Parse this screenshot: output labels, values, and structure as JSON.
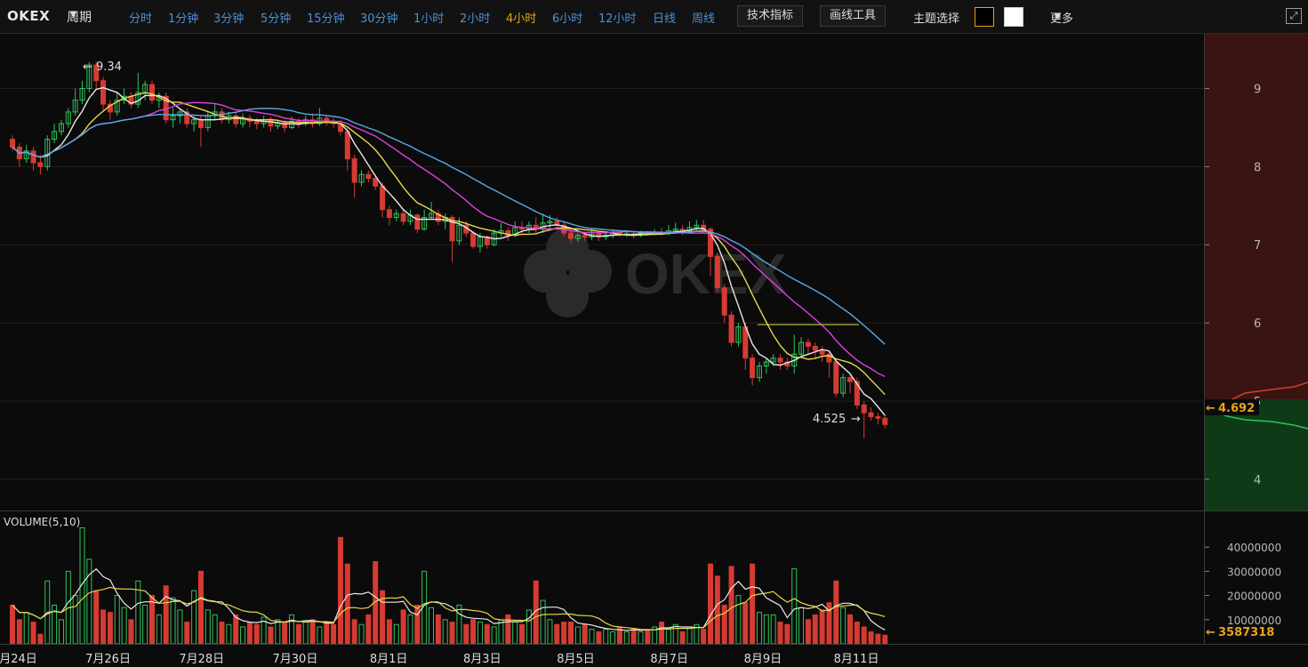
{
  "toolbar": {
    "logo": "OKEX",
    "period_label": "周期",
    "intervals": [
      "分时",
      "1分钟",
      "3分钟",
      "5分钟",
      "15分钟",
      "30分钟",
      "1小时",
      "2小时",
      "4小时",
      "6小时",
      "12小时",
      "日线",
      "周线"
    ],
    "active_interval": "4小时",
    "indicators_button": "技术指标",
    "drawing_tools_button": "画线工具",
    "theme_label": "主题选择",
    "more_label": "更多",
    "colors": {
      "accent": "#e8a317",
      "link": "#4a90d9"
    }
  },
  "watermark": "OKEX",
  "price_axis": {
    "ticks": [
      "9",
      "8",
      "7",
      "6",
      "5",
      "4"
    ],
    "current_price": "4.692"
  },
  "annotations": {
    "high": "9.34",
    "low": "4.525"
  },
  "volume_panel": {
    "title": "VOLUME(5,10)",
    "ticks": [
      "40000000",
      "30000000",
      "20000000",
      "10000000"
    ],
    "current_volume": "3587318"
  },
  "date_labels": [
    "7月24日",
    "7月26日",
    "7月28日",
    "7月30日",
    "8月1日",
    "8月3日",
    "8月5日",
    "8月7日",
    "8月9日",
    "8月11日"
  ],
  "chart_data": {
    "type": "candlestick",
    "candles": [
      [
        8.35,
        8.25,
        8.4,
        8.2
      ],
      [
        8.25,
        8.1,
        8.3,
        8.0
      ],
      [
        8.1,
        8.2,
        8.28,
        8.05
      ],
      [
        8.2,
        8.05,
        8.25,
        7.95
      ],
      [
        8.05,
        8.0,
        8.15,
        7.9
      ],
      [
        8.0,
        8.35,
        8.4,
        7.95
      ],
      [
        8.35,
        8.45,
        8.55,
        8.3
      ],
      [
        8.45,
        8.55,
        8.6,
        8.4
      ],
      [
        8.55,
        8.7,
        8.75,
        8.5
      ],
      [
        8.7,
        8.85,
        9.0,
        8.65
      ],
      [
        8.85,
        9.0,
        9.1,
        8.8
      ],
      [
        9.0,
        9.3,
        9.34,
        8.95
      ],
      [
        9.3,
        9.1,
        9.34,
        9.0
      ],
      [
        9.1,
        8.8,
        9.15,
        8.7
      ],
      [
        8.8,
        8.7,
        8.85,
        8.6
      ],
      [
        8.7,
        8.85,
        8.95,
        8.65
      ],
      [
        8.85,
        8.9,
        9.0,
        8.8
      ],
      [
        8.9,
        8.8,
        8.95,
        8.75
      ],
      [
        8.8,
        8.95,
        9.2,
        8.75
      ],
      [
        8.95,
        9.05,
        9.1,
        8.85
      ],
      [
        9.05,
        8.85,
        9.1,
        8.8
      ],
      [
        8.85,
        8.9,
        8.95,
        8.75
      ],
      [
        8.9,
        8.6,
        8.95,
        8.55
      ],
      [
        8.6,
        8.65,
        8.75,
        8.5
      ],
      [
        8.65,
        8.7,
        8.75,
        8.55
      ],
      [
        8.7,
        8.55,
        8.75,
        8.5
      ],
      [
        8.55,
        8.6,
        8.65,
        8.45
      ],
      [
        8.6,
        8.5,
        8.65,
        8.25
      ],
      [
        8.5,
        8.65,
        8.7,
        8.45
      ],
      [
        8.65,
        8.7,
        8.8,
        8.6
      ],
      [
        8.7,
        8.6,
        8.75,
        8.55
      ],
      [
        8.6,
        8.65,
        8.7,
        8.55
      ],
      [
        8.65,
        8.55,
        8.7,
        8.5
      ],
      [
        8.55,
        8.62,
        8.68,
        8.5
      ],
      [
        8.62,
        8.58,
        8.66,
        8.5
      ],
      [
        8.58,
        8.55,
        8.62,
        8.48
      ],
      [
        8.55,
        8.6,
        8.65,
        8.5
      ],
      [
        8.6,
        8.52,
        8.64,
        8.45
      ],
      [
        8.52,
        8.56,
        8.6,
        8.48
      ],
      [
        8.56,
        8.5,
        8.6,
        8.44
      ],
      [
        8.5,
        8.58,
        8.64,
        8.48
      ],
      [
        8.58,
        8.55,
        8.62,
        8.5
      ],
      [
        8.55,
        8.6,
        8.65,
        8.52
      ],
      [
        8.6,
        8.55,
        8.68,
        8.5
      ],
      [
        8.55,
        8.62,
        8.75,
        8.52
      ],
      [
        8.62,
        8.58,
        8.66,
        8.52
      ],
      [
        8.58,
        8.55,
        8.62,
        8.5
      ],
      [
        8.55,
        8.45,
        8.6,
        8.4
      ],
      [
        8.45,
        8.1,
        8.5,
        7.95
      ],
      [
        8.1,
        7.8,
        8.15,
        7.6
      ],
      [
        7.8,
        7.9,
        7.95,
        7.75
      ],
      [
        7.9,
        7.85,
        7.95,
        7.8
      ],
      [
        7.85,
        7.75,
        7.9,
        7.7
      ],
      [
        7.75,
        7.45,
        7.8,
        7.35
      ],
      [
        7.45,
        7.35,
        7.5,
        7.25
      ],
      [
        7.35,
        7.4,
        7.45,
        7.3
      ],
      [
        7.4,
        7.3,
        7.45,
        7.25
      ],
      [
        7.3,
        7.38,
        7.45,
        7.25
      ],
      [
        7.38,
        7.2,
        7.4,
        7.15
      ],
      [
        7.2,
        7.35,
        7.45,
        7.18
      ],
      [
        7.35,
        7.4,
        7.55,
        7.32
      ],
      [
        7.4,
        7.3,
        7.45,
        7.25
      ],
      [
        7.3,
        7.35,
        7.4,
        7.2
      ],
      [
        7.35,
        7.05,
        7.38,
        6.78
      ],
      [
        7.05,
        7.25,
        7.35,
        7.0
      ],
      [
        7.25,
        7.15,
        7.3,
        7.1
      ],
      [
        7.15,
        6.98,
        7.18,
        6.95
      ],
      [
        6.98,
        7.1,
        7.15,
        6.9
      ],
      [
        7.1,
        7.0,
        7.12,
        6.95
      ],
      [
        7.0,
        7.15,
        7.2,
        6.98
      ],
      [
        7.15,
        7.18,
        7.28,
        7.1
      ],
      [
        7.18,
        7.12,
        7.22,
        7.05
      ],
      [
        7.12,
        7.22,
        7.3,
        7.1
      ],
      [
        7.22,
        7.2,
        7.3,
        7.15
      ],
      [
        7.2,
        7.25,
        7.3,
        7.15
      ],
      [
        7.25,
        7.2,
        7.35,
        7.15
      ],
      [
        7.2,
        7.28,
        7.4,
        7.15
      ],
      [
        7.28,
        7.3,
        7.38,
        7.2
      ],
      [
        7.3,
        7.25,
        7.35,
        7.2
      ],
      [
        7.25,
        7.15,
        7.3,
        7.1
      ],
      [
        7.15,
        7.08,
        7.2,
        7.02
      ],
      [
        7.08,
        7.12,
        7.15,
        7.04
      ],
      [
        7.12,
        7.1,
        7.16,
        7.05
      ],
      [
        7.1,
        7.14,
        7.2,
        7.06
      ],
      [
        7.14,
        7.1,
        7.18,
        7.05
      ],
      [
        7.1,
        7.12,
        7.16,
        7.06
      ],
      [
        7.12,
        7.15,
        7.2,
        7.08
      ],
      [
        7.15,
        7.13,
        7.18,
        7.1
      ],
      [
        7.13,
        7.14,
        7.17,
        7.1
      ],
      [
        7.14,
        7.12,
        7.16,
        7.08
      ],
      [
        7.12,
        7.15,
        7.18,
        7.1
      ],
      [
        7.15,
        7.14,
        7.18,
        7.12
      ],
      [
        7.14,
        7.16,
        7.2,
        7.12
      ],
      [
        7.16,
        7.15,
        7.22,
        7.12
      ],
      [
        7.15,
        7.18,
        7.25,
        7.12
      ],
      [
        7.18,
        7.2,
        7.28,
        7.15
      ],
      [
        7.2,
        7.18,
        7.25,
        7.12
      ],
      [
        7.18,
        7.22,
        7.3,
        7.15
      ],
      [
        7.22,
        7.25,
        7.32,
        7.18
      ],
      [
        7.25,
        7.2,
        7.32,
        7.15
      ],
      [
        7.2,
        6.85,
        7.22,
        6.6
      ],
      [
        6.85,
        6.45,
        6.9,
        6.4
      ],
      [
        6.45,
        6.1,
        6.5,
        6.0
      ],
      [
        6.1,
        5.75,
        6.15,
        5.7
      ],
      [
        5.75,
        5.95,
        6.0,
        5.7
      ],
      [
        5.95,
        5.55,
        6.0,
        5.4
      ],
      [
        5.55,
        5.3,
        5.6,
        5.2
      ],
      [
        5.3,
        5.45,
        5.5,
        5.25
      ],
      [
        5.45,
        5.5,
        5.55,
        5.35
      ],
      [
        5.5,
        5.55,
        5.6,
        5.45
      ],
      [
        5.55,
        5.5,
        5.6,
        5.4
      ],
      [
        5.5,
        5.45,
        5.55,
        5.4
      ],
      [
        5.45,
        5.6,
        5.85,
        5.35
      ],
      [
        5.6,
        5.75,
        5.82,
        5.55
      ],
      [
        5.75,
        5.7,
        5.8,
        5.6
      ],
      [
        5.7,
        5.65,
        5.75,
        5.55
      ],
      [
        5.65,
        5.6,
        5.7,
        5.5
      ],
      [
        5.6,
        5.5,
        5.65,
        5.3
      ],
      [
        5.5,
        5.1,
        5.55,
        5.05
      ],
      [
        5.1,
        5.3,
        5.35,
        5.05
      ],
      [
        5.3,
        5.25,
        5.35,
        5.1
      ],
      [
        5.25,
        4.95,
        5.3,
        4.9
      ],
      [
        4.95,
        4.85,
        5.0,
        4.525
      ],
      [
        4.85,
        4.8,
        4.92,
        4.75
      ],
      [
        4.8,
        4.78,
        4.85,
        4.7
      ],
      [
        4.78,
        4.7,
        4.82,
        4.65
      ]
    ],
    "volumes": [
      16,
      10,
      13,
      9,
      4,
      26,
      16,
      10,
      30,
      20,
      48,
      35,
      22,
      14,
      13,
      20,
      15,
      10,
      26,
      16,
      20,
      12,
      24,
      19,
      14,
      9,
      22,
      30,
      14,
      12,
      9,
      8,
      12,
      7,
      9,
      8,
      11,
      7,
      10,
      9,
      12,
      8,
      9,
      10,
      7,
      9,
      8,
      44,
      33,
      10,
      8,
      12,
      34,
      22,
      10,
      8,
      14,
      12,
      16,
      30,
      15,
      12,
      10,
      9,
      16,
      8,
      10,
      9,
      8,
      7,
      10,
      12,
      9,
      8,
      14,
      26,
      18,
      10,
      8,
      9,
      9,
      7,
      8,
      6,
      5,
      6,
      5,
      7,
      5,
      6,
      5,
      6,
      7,
      9,
      6,
      8,
      5,
      7,
      8,
      6,
      33,
      28,
      16,
      32,
      20,
      17,
      33,
      13,
      12,
      12,
      9,
      8,
      31,
      15,
      10,
      12,
      14,
      17,
      26,
      15,
      12,
      9,
      7,
      5,
      4,
      3.6
    ],
    "ma_lines": {
      "MA5": "#e8e8e8",
      "MA10": "#e8d84a",
      "MA20": "#e040e0",
      "MA30": "#5aaae6"
    },
    "volume_ma": {
      "MA5": "#e8e8e8",
      "MA10": "#e8d84a"
    },
    "price_range": [
      3.6,
      9.7
    ],
    "volume_range": [
      0,
      50000000
    ],
    "colors": {
      "up": "#2ec35a",
      "down": "#d63b32",
      "grid": "#1f1f1f",
      "axis_text": "#b8b8b8",
      "current_price": "#e8a317"
    }
  }
}
